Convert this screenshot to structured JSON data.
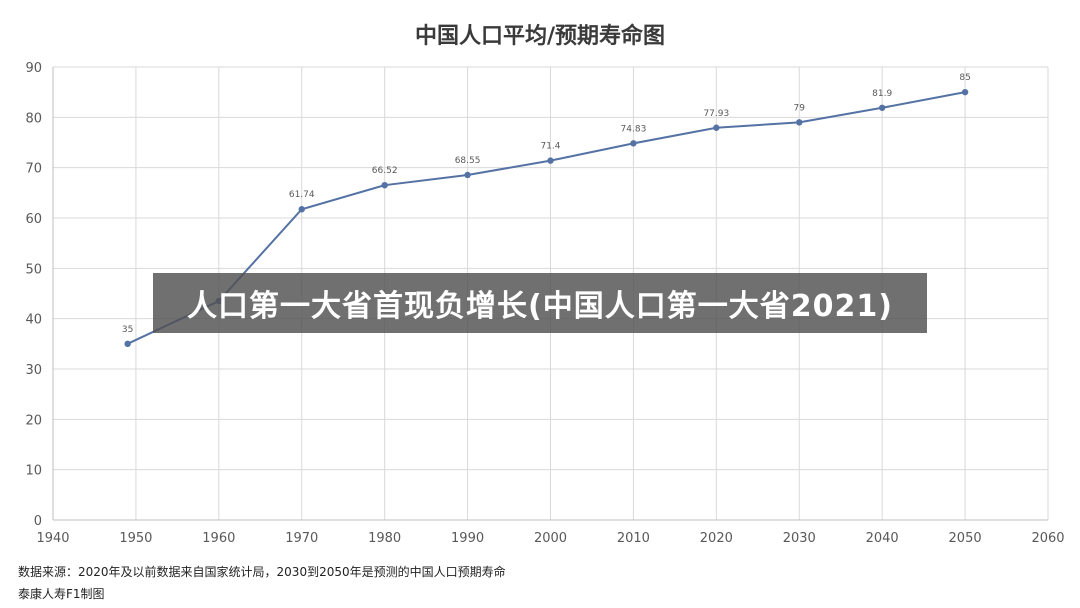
{
  "chart_data": {
    "type": "line",
    "title": "中国人口平均/预期寿命图",
    "x": [
      1949,
      1960,
      1970,
      1980,
      1990,
      2000,
      2010,
      2020,
      2030,
      2040,
      2050
    ],
    "series": [
      {
        "values": [
          35,
          43.5,
          61.74,
          66.52,
          68.55,
          71.4,
          74.83,
          77.93,
          79,
          81.9,
          85
        ],
        "data_labels": [
          "35",
          "",
          "61.74",
          "66.52",
          "68.55",
          "71.4",
          "74.83",
          "77.93",
          "79",
          "81.9",
          "85"
        ],
        "color": "#5472a4"
      }
    ],
    "xlim": [
      1940,
      2060
    ],
    "ylim": [
      0,
      90
    ],
    "xticks": [
      "1940",
      "1950",
      "1960",
      "1970",
      "1980",
      "1990",
      "2000",
      "2010",
      "2020",
      "2030",
      "2040",
      "2050",
      "2060"
    ],
    "yticks": [
      "0",
      "10",
      "20",
      "30",
      "40",
      "50",
      "60",
      "70",
      "80",
      "90"
    ],
    "grid": true,
    "xlabel": "",
    "ylabel": ""
  },
  "source_line1": "数据来源：2020年及以前数据来自国家统计局，2030到2050年是预测的中国人口预期寿命",
  "source_line2": "泰康人寿F1制图",
  "overlay_caption": "人口第一大省首现负增长(中国人口第一大省2021)"
}
